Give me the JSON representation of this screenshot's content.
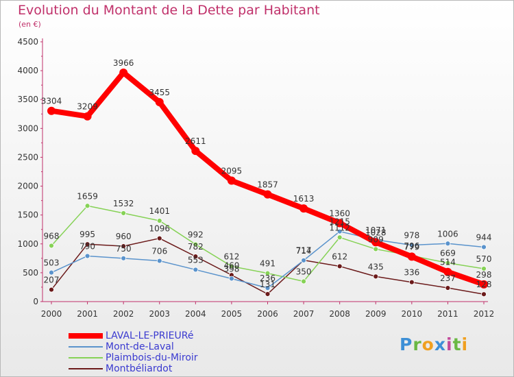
{
  "chart_data": {
    "type": "line",
    "title": "Evolution du Montant de la Dette par Habitant",
    "subtitle": "(en €)",
    "xlabel": "",
    "ylabel": "",
    "ylim": [
      0,
      4500
    ],
    "yticks": [
      0,
      500,
      1000,
      1500,
      2000,
      2500,
      3000,
      3500,
      4000,
      4500
    ],
    "categories": [
      "2000",
      "2001",
      "2002",
      "2003",
      "2004",
      "2005",
      "2006",
      "2007",
      "2008",
      "2009",
      "2010",
      "2011",
      "2012"
    ],
    "series": [
      {
        "name": "LAVAL-LE-PRIEURé",
        "color": "#ff0000",
        "width": 8,
        "values": [
          3304,
          3209,
          3966,
          3455,
          2611,
          2095,
          1857,
          1613,
          1360,
          1028,
          779,
          514,
          298
        ]
      },
      {
        "name": "Mont-de-Laval",
        "color": "#5a93cc",
        "width": 1.5,
        "values": [
          503,
          790,
          750,
          706,
          553,
          398,
          236,
          714,
          1215,
          1071,
          978,
          1006,
          944
        ]
      },
      {
        "name": "Plaimbois-du-Miroir",
        "color": "#86d256",
        "width": 1.5,
        "values": [
          968,
          1659,
          1532,
          1401,
          992,
          612,
          491,
          350,
          1112,
          909,
          796,
          669,
          570
        ]
      },
      {
        "name": "Montbéliardot",
        "color": "#6b1a1a",
        "width": 1.5,
        "values": [
          207,
          995,
          960,
          1096,
          782,
          460,
          131,
          717,
          612,
          435,
          336,
          237,
          128
        ]
      }
    ],
    "legend_position": "bottom-left"
  },
  "logo": {
    "p": "P",
    "r": "r",
    "o": "o",
    "x": "x",
    "i": "i",
    "t": "t",
    "i2": "i"
  }
}
